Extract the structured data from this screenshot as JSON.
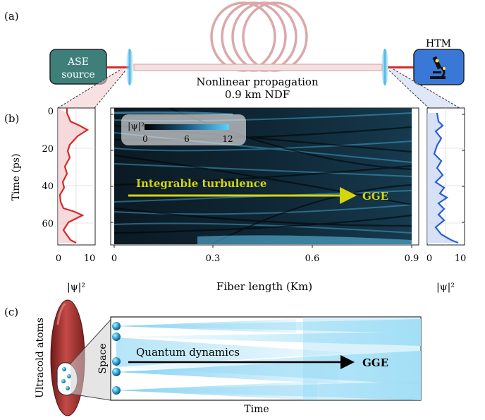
{
  "panel_a": {
    "label": "(a)",
    "source_box": {
      "line1": "ASE",
      "line2": "source",
      "color": "#3f7f7a"
    },
    "detector_box": {
      "label": "HTM",
      "color": "#3a78d8"
    },
    "fiber_text_line1": "Nonlinear propagation",
    "fiber_text_line2": "0.9 km NDF",
    "fiber_color": "#dba8ab"
  },
  "panel_b": {
    "label": "(b)",
    "y_axis_label": "Time (ps)",
    "y_ticks": [
      "0",
      "20",
      "40",
      "60"
    ],
    "left_x_ticks": [
      "0",
      "10"
    ],
    "right_x_ticks": [
      "0",
      "10"
    ],
    "left_x_label": "|ψ|²",
    "right_x_label": "|ψ|²",
    "main_x_ticks": [
      "0",
      "0.3",
      "0.6",
      "0.9"
    ],
    "main_x_label": "Fiber length (Km)",
    "colorbar_title": "|ψ|²",
    "colorbar_ticks": [
      "0",
      "6",
      "12"
    ],
    "arrow_label": "Integrable turbulence",
    "arrow_end_label": "GGE",
    "arrow_color": "#d4d40f",
    "left_profile_color": "#d42a2a",
    "right_profile_color": "#2a5fd4"
  },
  "panel_c": {
    "label": "(c)",
    "atoms_label": "Ultracold atoms",
    "space_label": "Space",
    "time_label": "Time",
    "arrow_label": "Quantum dynamics",
    "arrow_end_label": "GGE",
    "cloud_color": "#a8302e"
  }
}
